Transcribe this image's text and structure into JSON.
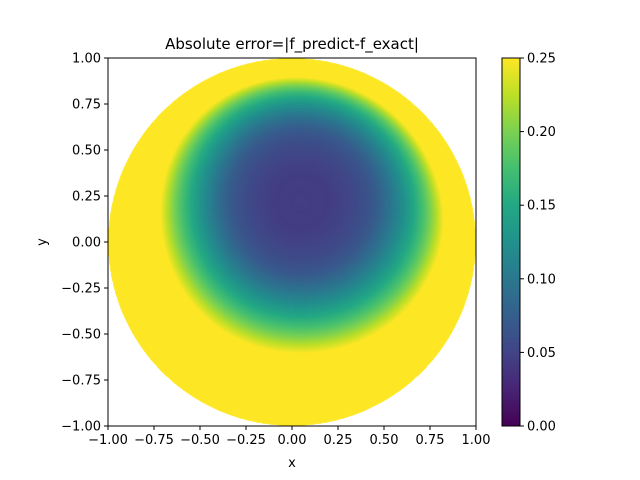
{
  "chart_data": {
    "type": "heatmap",
    "title": "Absolute error=|f_predict-f_exact|",
    "xlabel": "x",
    "ylabel": "y",
    "xlim": [
      -1.0,
      1.0
    ],
    "ylim": [
      -1.0,
      1.0
    ],
    "x_ticks": [
      "−1.00",
      "−0.75",
      "−0.50",
      "−0.25",
      "0.00",
      "0.25",
      "0.50",
      "0.75",
      "1.00"
    ],
    "y_ticks": [
      "−1.00",
      "−0.75",
      "−0.50",
      "−0.25",
      "0.00",
      "0.25",
      "0.50",
      "0.75",
      "1.00"
    ],
    "x_tick_values": [
      -1.0,
      -0.75,
      -0.5,
      -0.25,
      0.0,
      0.25,
      0.5,
      0.75,
      1.0
    ],
    "y_tick_values": [
      -1.0,
      -0.75,
      -0.5,
      -0.25,
      0.0,
      0.25,
      0.5,
      0.75,
      1.0
    ],
    "domain": "unit disk",
    "colormap": "viridis",
    "clim": [
      0.0,
      0.25
    ],
    "colorbar_ticks": [
      "0.00",
      "0.05",
      "0.10",
      "0.15",
      "0.20",
      "0.25"
    ],
    "colorbar_tick_values": [
      0.0,
      0.05,
      0.1,
      0.15,
      0.2,
      0.25
    ],
    "features": {
      "minimum_region_center": [
        0.05,
        0.22
      ],
      "minimum_value": 0.0,
      "near_zero_ring_center": [
        0.05,
        0.2
      ],
      "saturated_region": "left edge and lower rim of the disk (value >= 0.25)",
      "right_rim_value": 0.2
    },
    "grid": false,
    "legend": "colorbar right"
  }
}
